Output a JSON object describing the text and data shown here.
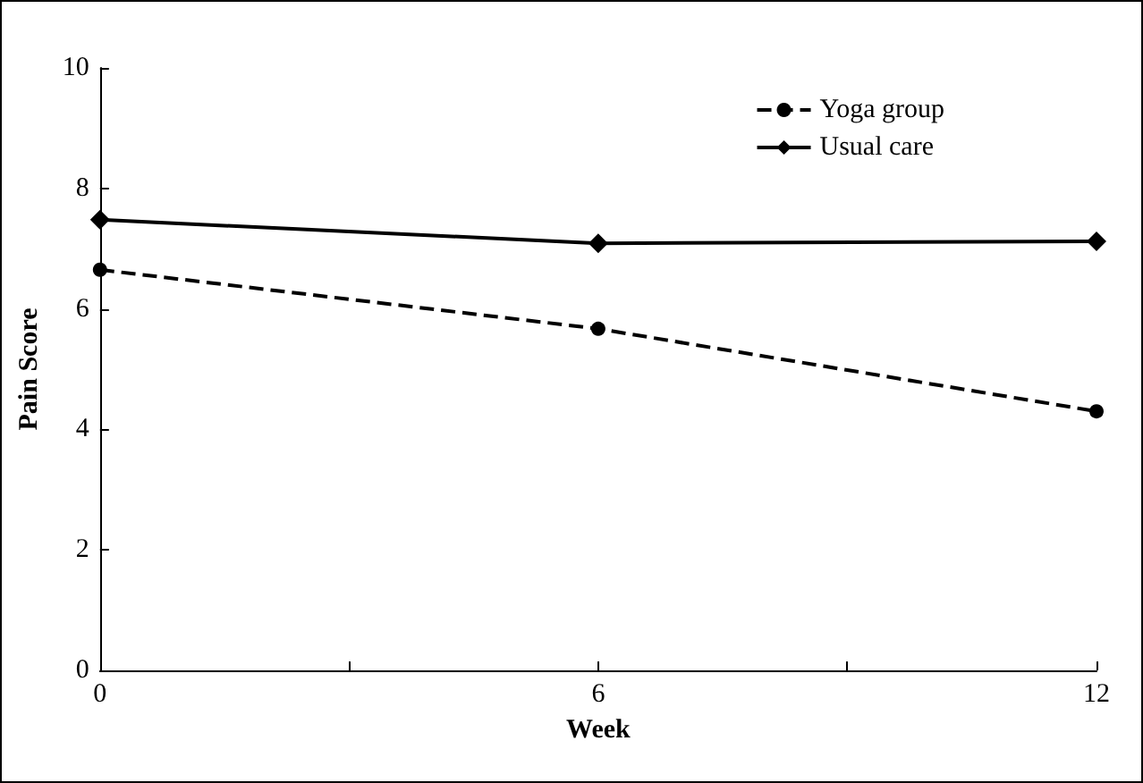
{
  "chart_data": {
    "type": "line",
    "xlabel": "Week",
    "ylabel": "Pain Score",
    "x": [
      0,
      6,
      12
    ],
    "series": [
      {
        "name": "Yoga group",
        "color": "#000000",
        "values": [
          6.65,
          5.67,
          4.3
        ],
        "marker": "circle",
        "line_style": "dashed"
      },
      {
        "name": "Usual care",
        "color": "#000000",
        "values": [
          7.48,
          7.09,
          7.12
        ],
        "marker": "diamond",
        "line_style": "solid"
      }
    ],
    "xlim": [
      0,
      12
    ],
    "xticks": [
      0,
      {
        "value": 3,
        "label": null
      },
      6,
      {
        "value": 9,
        "label": null
      },
      12
    ],
    "ylim": [
      0,
      10
    ],
    "yticks": [
      0,
      2,
      4,
      6,
      8,
      10
    ],
    "grid": false,
    "legend": "top right"
  }
}
